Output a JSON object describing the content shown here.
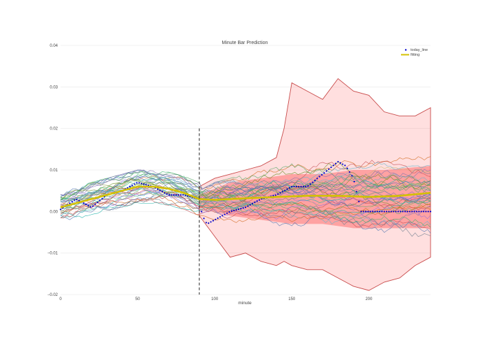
{
  "chart_data": {
    "type": "line",
    "title": "Minute Bar Prediction",
    "xlabel": "minute",
    "ylabel": "",
    "xlim": [
      0,
      240
    ],
    "ylim": [
      -0.02,
      0.04
    ],
    "x_ticks": [
      0,
      50,
      100,
      150,
      200
    ],
    "x_tick_labels": [
      "0",
      "50",
      "100",
      "150",
      "200"
    ],
    "y_ticks": [
      -0.02,
      -0.01,
      0.0,
      0.01,
      0.02,
      0.03,
      0.04
    ],
    "y_tick_labels": [
      "−0.02",
      "−0.01",
      "0.00",
      "0.01",
      "0.02",
      "0.03",
      "0.04"
    ],
    "grid": true,
    "legend_position": "top-right",
    "legend": [
      {
        "name": "today_line",
        "color": "#0000cc"
      },
      {
        "name": "fitting",
        "color": "#d4c000"
      }
    ],
    "vline": {
      "x": 90,
      "style": "dashed",
      "color": "#222222"
    },
    "envelope": {
      "color": "#ff6f6f",
      "x": [
        90,
        100,
        110,
        120,
        130,
        140,
        145,
        150,
        160,
        170,
        180,
        190,
        200,
        210,
        220,
        230,
        240
      ],
      "upper": [
        0.006,
        0.008,
        0.009,
        0.01,
        0.011,
        0.013,
        0.02,
        0.031,
        0.029,
        0.027,
        0.032,
        0.029,
        0.028,
        0.024,
        0.023,
        0.023,
        0.025
      ],
      "lower": [
        -0.001,
        -0.006,
        -0.011,
        -0.01,
        -0.012,
        -0.013,
        -0.012,
        -0.013,
        -0.014,
        -0.014,
        -0.016,
        -0.018,
        -0.019,
        -0.017,
        -0.016,
        -0.013,
        -0.011
      ]
    },
    "inner_band": {
      "color": "#ff3030",
      "x": [
        90,
        110,
        130,
        150,
        170,
        190,
        210,
        240
      ],
      "upper": [
        0.004,
        0.007,
        0.008,
        0.009,
        0.009,
        0.01,
        0.01,
        0.011
      ],
      "lower": [
        0.001,
        -0.001,
        -0.002,
        -0.003,
        -0.003,
        -0.004,
        -0.004,
        -0.004
      ]
    },
    "series": [
      {
        "name": "today_line",
        "style": "dotted-markers",
        "color": "#0000cc",
        "x": [
          0,
          10,
          20,
          30,
          40,
          50,
          60,
          70,
          80,
          90,
          92,
          95,
          100,
          105,
          110,
          120,
          130,
          140,
          150,
          160,
          170,
          180,
          185,
          190,
          195,
          200,
          210,
          220,
          230,
          240
        ],
        "values": [
          0.0005,
          0.003,
          0.001,
          0.004,
          0.005,
          0.007,
          0.006,
          0.004,
          0.004,
          0.003,
          -0.001,
          -0.003,
          -0.002,
          -0.001,
          0.0,
          0.001,
          0.003,
          0.004,
          0.006,
          0.006,
          0.009,
          0.012,
          0.011,
          0.008,
          0.0,
          0.0,
          0.0,
          0.0,
          0.0,
          0.0
        ]
      },
      {
        "name": "fitting",
        "style": "thick-line",
        "color": "#d4c000",
        "x": [
          0,
          10,
          20,
          30,
          40,
          50,
          60,
          70,
          80,
          90,
          100,
          120,
          140,
          160,
          180,
          200,
          220,
          240
        ],
        "values": [
          0.001,
          0.002,
          0.003,
          0.004,
          0.005,
          0.006,
          0.006,
          0.0055,
          0.0045,
          0.003,
          0.0028,
          0.0032,
          0.0035,
          0.0038,
          0.0038,
          0.0035,
          0.0038,
          0.0045
        ]
      }
    ],
    "simulated_paths": {
      "count": 40,
      "note": "many thin multicolored historical/simulated paths"
    }
  }
}
